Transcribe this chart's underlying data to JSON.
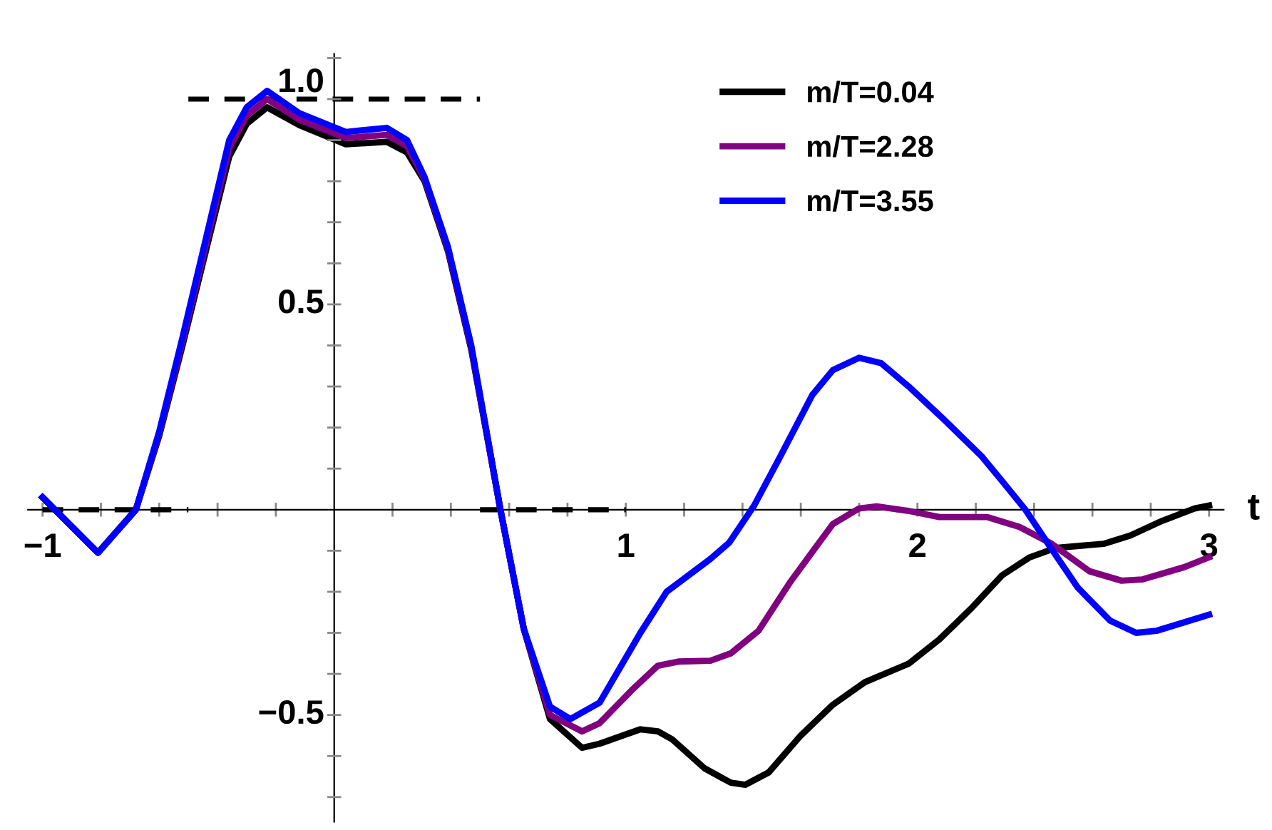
{
  "chart_data": {
    "type": "line",
    "xlabel": "t",
    "xlim": [
      -1.05,
      3.05
    ],
    "ylim": [
      -0.76,
      1.11
    ],
    "xticks": [
      -1,
      {
        "value": -0.8,
        "label": null
      },
      {
        "value": -0.6,
        "label": null
      },
      {
        "value": -0.4,
        "label": null
      },
      {
        "value": -0.2,
        "label": null
      },
      {
        "value": 0.2,
        "label": null
      },
      {
        "value": 0.4,
        "label": null
      },
      {
        "value": 0.6,
        "label": null
      },
      {
        "value": 0.8,
        "label": null
      },
      1,
      {
        "value": 1.2,
        "label": null
      },
      {
        "value": 1.4,
        "label": null
      },
      {
        "value": 1.6,
        "label": null
      },
      {
        "value": 1.8,
        "label": null
      },
      2,
      {
        "value": 2.2,
        "label": null
      },
      {
        "value": 2.4,
        "label": null
      },
      {
        "value": 2.6,
        "label": null
      },
      {
        "value": 2.8,
        "label": null
      },
      3
    ],
    "yticks": [
      {
        "value": -0.7,
        "label": null
      },
      {
        "value": -0.6,
        "label": null
      },
      -0.5,
      {
        "value": -0.4,
        "label": null
      },
      {
        "value": -0.3,
        "label": null
      },
      {
        "value": -0.2,
        "label": null
      },
      {
        "value": -0.1,
        "label": null
      },
      {
        "value": 0.1,
        "label": null
      },
      {
        "value": 0.2,
        "label": null
      },
      {
        "value": 0.3,
        "label": null
      },
      {
        "value": 0.4,
        "label": null
      },
      0.5,
      {
        "value": 0.6,
        "label": null
      },
      {
        "value": 0.7,
        "label": null
      },
      {
        "value": 0.8,
        "label": null
      },
      {
        "value": 0.9,
        "label": null
      },
      {
        "value": 1.0,
        "label": "1.0"
      },
      {
        "value": 1.1,
        "label": null
      }
    ],
    "grid": false,
    "legend": "top right",
    "marker": "none",
    "series": [
      {
        "x": [
          -1,
          -0.5
        ],
        "values": [
          0,
          0
        ],
        "color": "#000000",
        "line_style": "dashed"
      },
      {
        "x": [
          -0.5,
          0.5
        ],
        "values": [
          1,
          1
        ],
        "color": "#000000",
        "line_style": "dashed"
      },
      {
        "x": [
          0.5,
          1
        ],
        "values": [
          0,
          0
        ],
        "color": "#000000",
        "line_style": "dashed"
      },
      {
        "name": "m/T=0.04",
        "color": "#000000",
        "line_style": "solid",
        "x": [
          -1.0,
          -0.81,
          -0.68,
          -0.6,
          -0.52,
          -0.44,
          -0.36,
          -0.3,
          -0.23,
          -0.12,
          0.04,
          0.18,
          0.25,
          0.31,
          0.39,
          0.47,
          0.57,
          0.65,
          0.74,
          0.85,
          0.91,
          1.05,
          1.11,
          1.16,
          1.27,
          1.36,
          1.41,
          1.49,
          1.6,
          1.71,
          1.82,
          1.97,
          2.075,
          2.185,
          2.29,
          2.385,
          2.475,
          2.64,
          2.73,
          2.84,
          2.95,
          3.0
        ],
        "values": [
          0.03,
          -0.105,
          0.0,
          0.18,
          0.4,
          0.63,
          0.86,
          0.94,
          0.98,
          0.937,
          0.89,
          0.896,
          0.87,
          0.8,
          0.63,
          0.39,
          0.0,
          -0.29,
          -0.51,
          -0.58,
          -0.57,
          -0.535,
          -0.54,
          -0.56,
          -0.63,
          -0.665,
          -0.67,
          -0.64,
          -0.55,
          -0.475,
          -0.42,
          -0.375,
          -0.316,
          -0.24,
          -0.16,
          -0.116,
          -0.093,
          -0.083,
          -0.063,
          -0.027,
          0.003,
          0.01
        ]
      },
      {
        "name": "m/T=2.28",
        "color": "#800080",
        "line_style": "solid",
        "x": [
          -1.0,
          -0.81,
          -0.68,
          -0.6,
          -0.52,
          -0.44,
          -0.36,
          -0.3,
          -0.23,
          -0.12,
          0.04,
          0.18,
          0.25,
          0.31,
          0.39,
          0.47,
          0.57,
          0.65,
          0.74,
          0.85,
          0.91,
          1.02,
          1.11,
          1.18,
          1.29,
          1.36,
          1.455,
          1.565,
          1.66,
          1.71,
          1.8,
          1.86,
          1.97,
          2.075,
          2.24,
          2.35,
          2.46,
          2.59,
          2.7,
          2.77,
          2.915,
          3.0
        ],
        "values": [
          0.03,
          -0.105,
          0.0,
          0.185,
          0.41,
          0.645,
          0.88,
          0.96,
          1.0,
          0.95,
          0.905,
          0.913,
          0.885,
          0.805,
          0.635,
          0.395,
          0.0,
          -0.29,
          -0.5,
          -0.54,
          -0.52,
          -0.44,
          -0.38,
          -0.37,
          -0.368,
          -0.35,
          -0.295,
          -0.175,
          -0.083,
          -0.035,
          0.003,
          0.008,
          -0.003,
          -0.018,
          -0.018,
          -0.042,
          -0.083,
          -0.15,
          -0.173,
          -0.17,
          -0.14,
          -0.116
        ]
      },
      {
        "name": "m/T=3.55",
        "color": "#0000ff",
        "line_style": "solid",
        "x": [
          -1.0,
          -0.81,
          -0.68,
          -0.6,
          -0.52,
          -0.44,
          -0.36,
          -0.3,
          -0.23,
          -0.12,
          0.04,
          0.18,
          0.25,
          0.31,
          0.39,
          0.47,
          0.57,
          0.65,
          0.74,
          0.81,
          0.91,
          1.05,
          1.14,
          1.29,
          1.355,
          1.44,
          1.53,
          1.64,
          1.71,
          1.8,
          1.875,
          1.97,
          2.09,
          2.22,
          2.29,
          2.37,
          2.46,
          2.55,
          2.66,
          2.75,
          2.82,
          3.0
        ],
        "values": [
          0.03,
          -0.105,
          0.0,
          0.19,
          0.42,
          0.66,
          0.9,
          0.98,
          1.02,
          0.966,
          0.92,
          0.93,
          0.9,
          0.81,
          0.64,
          0.4,
          0.0,
          -0.29,
          -0.48,
          -0.51,
          -0.47,
          -0.3,
          -0.2,
          -0.12,
          -0.08,
          0.01,
          0.13,
          0.28,
          0.34,
          0.37,
          0.357,
          0.3,
          0.22,
          0.13,
          0.07,
          0.0,
          -0.096,
          -0.19,
          -0.27,
          -0.3,
          -0.295,
          -0.256
        ]
      }
    ]
  }
}
